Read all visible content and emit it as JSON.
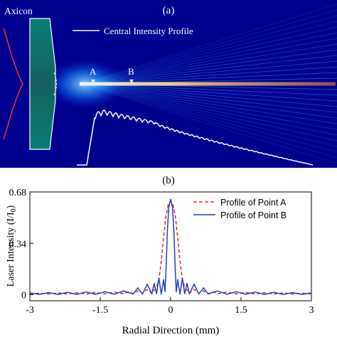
{
  "panel_a": {
    "label": "(a)",
    "element_label": "Axicon",
    "legend": "Central Intensity Profile",
    "point_a": "A",
    "point_b": "B",
    "colors": {
      "background": "#00008f",
      "beam_core": "#fff6b0",
      "beam_glow": "#00b4ff",
      "axicon_fill": "#0c6a66",
      "incident_profile": "#ff3030",
      "central_profile": "#ffffff"
    }
  },
  "panel_b": {
    "label": "(b)"
  },
  "chart_data": {
    "type": "line",
    "title": "",
    "xlabel": "Radial Direction (mm)",
    "ylabel": "Laser Intensity (I/I",
    "ylabel_sub": "0",
    "ylabel_tail": ")",
    "xlim": [
      -3,
      3
    ],
    "ylim": [
      -0.04,
      0.68
    ],
    "xticks": [
      -3,
      -1.5,
      0,
      1.5,
      3
    ],
    "xtick_labels": [
      "-3",
      "-1.5",
      "0",
      "1.5",
      "3"
    ],
    "yticks": [
      0,
      0.34,
      0.68
    ],
    "ytick_labels": [
      "0",
      "0.34",
      "0.68"
    ],
    "grid": false,
    "legend_position": "top-right",
    "series": [
      {
        "name": "Profile of Point A",
        "color": "#e8262a",
        "style": "dashed",
        "x": [
          -3.0,
          -2.8,
          -2.6,
          -2.4,
          -2.2,
          -2.0,
          -1.8,
          -1.6,
          -1.4,
          -1.2,
          -1.0,
          -0.9,
          -0.8,
          -0.7,
          -0.6,
          -0.5,
          -0.4,
          -0.3,
          -0.25,
          -0.2,
          -0.15,
          -0.1,
          -0.05,
          0.0,
          0.05,
          0.1,
          0.15,
          0.2,
          0.25,
          0.3,
          0.4,
          0.5,
          0.6,
          0.7,
          0.8,
          0.9,
          1.0,
          1.2,
          1.4,
          1.6,
          1.8,
          2.0,
          2.2,
          2.4,
          2.6,
          2.8,
          3.0
        ],
        "y": [
          0.005,
          0.01,
          0.004,
          0.012,
          0.004,
          0.013,
          0.004,
          0.015,
          0.005,
          0.017,
          0.006,
          0.02,
          0.007,
          0.026,
          0.008,
          0.035,
          0.01,
          0.05,
          0.1,
          0.22,
          0.38,
          0.52,
          0.6,
          0.62,
          0.6,
          0.52,
          0.38,
          0.22,
          0.1,
          0.05,
          0.01,
          0.035,
          0.008,
          0.026,
          0.007,
          0.02,
          0.006,
          0.017,
          0.005,
          0.015,
          0.004,
          0.013,
          0.004,
          0.012,
          0.004,
          0.01,
          0.005
        ]
      },
      {
        "name": "Profile of Point B",
        "color": "#1f3fc8",
        "style": "solid",
        "x": [
          -3.0,
          -2.8,
          -2.6,
          -2.4,
          -2.2,
          -2.0,
          -1.8,
          -1.6,
          -1.4,
          -1.2,
          -1.0,
          -0.8,
          -0.7,
          -0.6,
          -0.5,
          -0.4,
          -0.35,
          -0.3,
          -0.25,
          -0.2,
          -0.15,
          -0.12,
          -0.1,
          -0.07,
          -0.04,
          0.0,
          0.04,
          0.07,
          0.1,
          0.12,
          0.15,
          0.2,
          0.25,
          0.3,
          0.35,
          0.4,
          0.5,
          0.6,
          0.7,
          0.8,
          1.0,
          1.2,
          1.4,
          1.6,
          1.8,
          2.0,
          2.2,
          2.4,
          2.6,
          2.8,
          3.0
        ],
        "y": [
          0.012,
          0.002,
          0.014,
          0.002,
          0.016,
          0.002,
          0.018,
          0.003,
          0.02,
          0.003,
          0.025,
          0.004,
          0.045,
          0.004,
          0.07,
          0.005,
          0.075,
          0.006,
          0.11,
          0.004,
          0.1,
          0.02,
          0.15,
          0.42,
          0.58,
          0.63,
          0.58,
          0.42,
          0.15,
          0.02,
          0.1,
          0.004,
          0.11,
          0.006,
          0.075,
          0.005,
          0.07,
          0.004,
          0.045,
          0.004,
          0.025,
          0.003,
          0.02,
          0.003,
          0.018,
          0.002,
          0.016,
          0.002,
          0.014,
          0.002,
          0.012
        ]
      }
    ]
  }
}
